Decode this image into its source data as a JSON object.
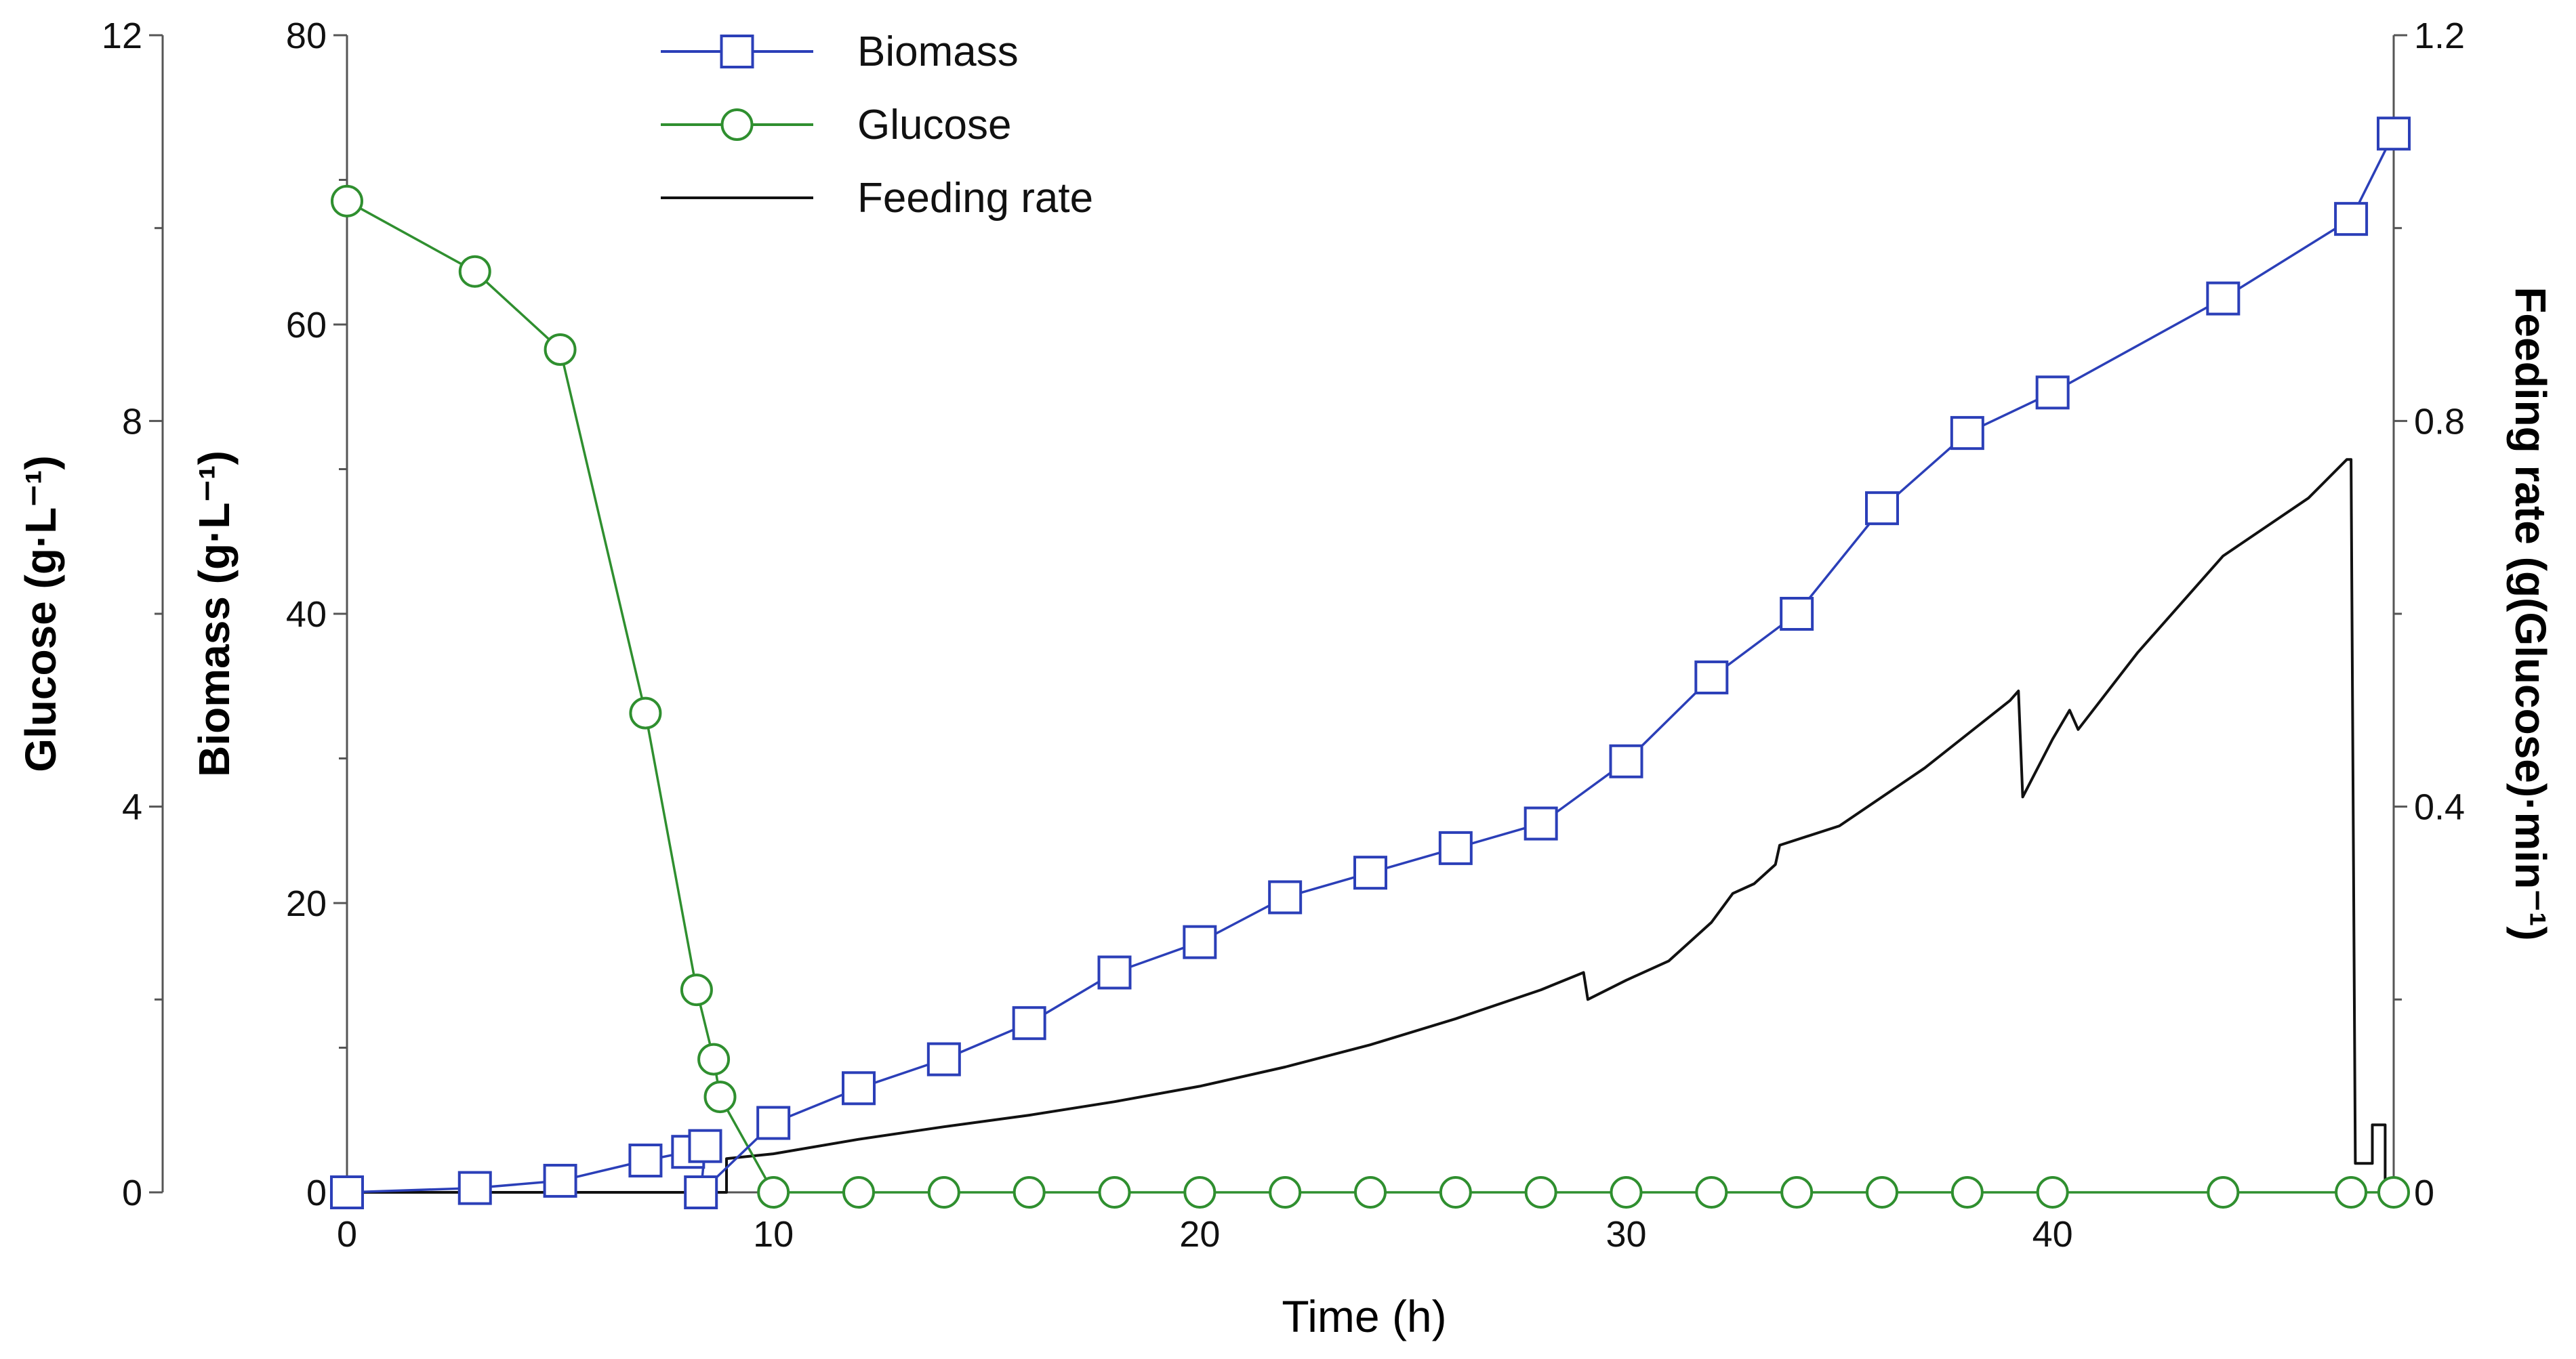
{
  "chart_data": {
    "type": "line",
    "title": "",
    "xlabel": "Time (h)",
    "xlim": [
      0,
      48
    ],
    "x_ticks": [
      0,
      10,
      20,
      30,
      40
    ],
    "axes": {
      "biomass": {
        "label": "Biomass (g·L⁻¹)",
        "range": [
          0,
          80
        ],
        "ticks": [
          0,
          20,
          40,
          60,
          80
        ],
        "side": "left-inner"
      },
      "glucose": {
        "label": "Glucose (g·L⁻¹)",
        "range": [
          0,
          12
        ],
        "ticks": [
          0,
          4,
          8,
          12
        ],
        "side": "left-outer"
      },
      "feeding": {
        "label": "Feeding rate (g(Glucose)·min⁻¹)",
        "range": [
          0,
          1.2
        ],
        "ticks": [
          0,
          0.4,
          0.8,
          1.2
        ],
        "tick_labels": [
          "0",
          "0.4",
          "0.8",
          "1.2"
        ],
        "side": "right"
      }
    },
    "legend": {
      "position": "top-left"
    },
    "series": [
      {
        "name": "Biomass",
        "axis": "biomass",
        "marker": "square",
        "color": "#2b3fb8",
        "points": [
          [
            0,
            0
          ],
          [
            3,
            0.3
          ],
          [
            5,
            0.8
          ],
          [
            7,
            2.2
          ],
          [
            8,
            2.8
          ],
          [
            8.4,
            3.2
          ],
          [
            8.3,
            0
          ],
          [
            10,
            4.8
          ],
          [
            12,
            7.2
          ],
          [
            14,
            9.2
          ],
          [
            16,
            11.7
          ],
          [
            18,
            15.2
          ],
          [
            20,
            17.3
          ],
          [
            22,
            20.4
          ],
          [
            24,
            22.1
          ],
          [
            26,
            23.8
          ],
          [
            28,
            25.5
          ],
          [
            30,
            29.8
          ],
          [
            32,
            35.6
          ],
          [
            34,
            40.0
          ],
          [
            36,
            47.3
          ],
          [
            38,
            52.5
          ],
          [
            40,
            55.3
          ],
          [
            44,
            61.8
          ],
          [
            47,
            67.3
          ],
          [
            48,
            73.2
          ]
        ]
      },
      {
        "name": "Glucose",
        "axis": "glucose",
        "marker": "circle",
        "color": "#2f8f2f",
        "points": [
          [
            0,
            10.28
          ],
          [
            3,
            9.55
          ],
          [
            5,
            8.74
          ],
          [
            7,
            4.97
          ],
          [
            8.2,
            2.1
          ],
          [
            8.6,
            1.38
          ],
          [
            8.75,
            0.99
          ],
          [
            10,
            0
          ],
          [
            12,
            0
          ],
          [
            14,
            0
          ],
          [
            16,
            0
          ],
          [
            18,
            0
          ],
          [
            20,
            0
          ],
          [
            22,
            0
          ],
          [
            24,
            0
          ],
          [
            26,
            0
          ],
          [
            28,
            0
          ],
          [
            30,
            0
          ],
          [
            32,
            0
          ],
          [
            34,
            0
          ],
          [
            36,
            0
          ],
          [
            38,
            0
          ],
          [
            40,
            0
          ],
          [
            44,
            0
          ],
          [
            47,
            0
          ],
          [
            48,
            0
          ]
        ]
      },
      {
        "name": "Feeding rate",
        "axis": "feeding",
        "marker": "none",
        "color": "#111111",
        "points": [
          [
            0,
            0
          ],
          [
            8.9,
            0
          ],
          [
            8.9,
            0.035
          ],
          [
            10,
            0.04
          ],
          [
            12,
            0.055
          ],
          [
            14,
            0.068
          ],
          [
            16,
            0.08
          ],
          [
            18,
            0.094
          ],
          [
            20,
            0.11
          ],
          [
            22,
            0.13
          ],
          [
            24,
            0.153
          ],
          [
            26,
            0.18
          ],
          [
            28,
            0.21
          ],
          [
            29,
            0.228
          ],
          [
            29.1,
            0.2
          ],
          [
            30,
            0.22
          ],
          [
            31,
            0.24
          ],
          [
            32,
            0.28
          ],
          [
            32.5,
            0.31
          ],
          [
            33,
            0.32
          ],
          [
            33.5,
            0.34
          ],
          [
            33.6,
            0.36
          ],
          [
            35,
            0.38
          ],
          [
            37,
            0.44
          ],
          [
            39,
            0.51
          ],
          [
            39.2,
            0.52
          ],
          [
            39.3,
            0.41
          ],
          [
            40,
            0.47
          ],
          [
            40.4,
            0.5
          ],
          [
            40.6,
            0.48
          ],
          [
            42,
            0.56
          ],
          [
            44,
            0.66
          ],
          [
            46,
            0.72
          ],
          [
            46.9,
            0.76
          ],
          [
            47,
            0.76
          ],
          [
            47.1,
            0.03
          ],
          [
            47.5,
            0.03
          ],
          [
            47.5,
            0.07
          ],
          [
            47.8,
            0.07
          ],
          [
            47.8,
            0.005
          ],
          [
            48,
            0.005
          ]
        ]
      }
    ]
  }
}
